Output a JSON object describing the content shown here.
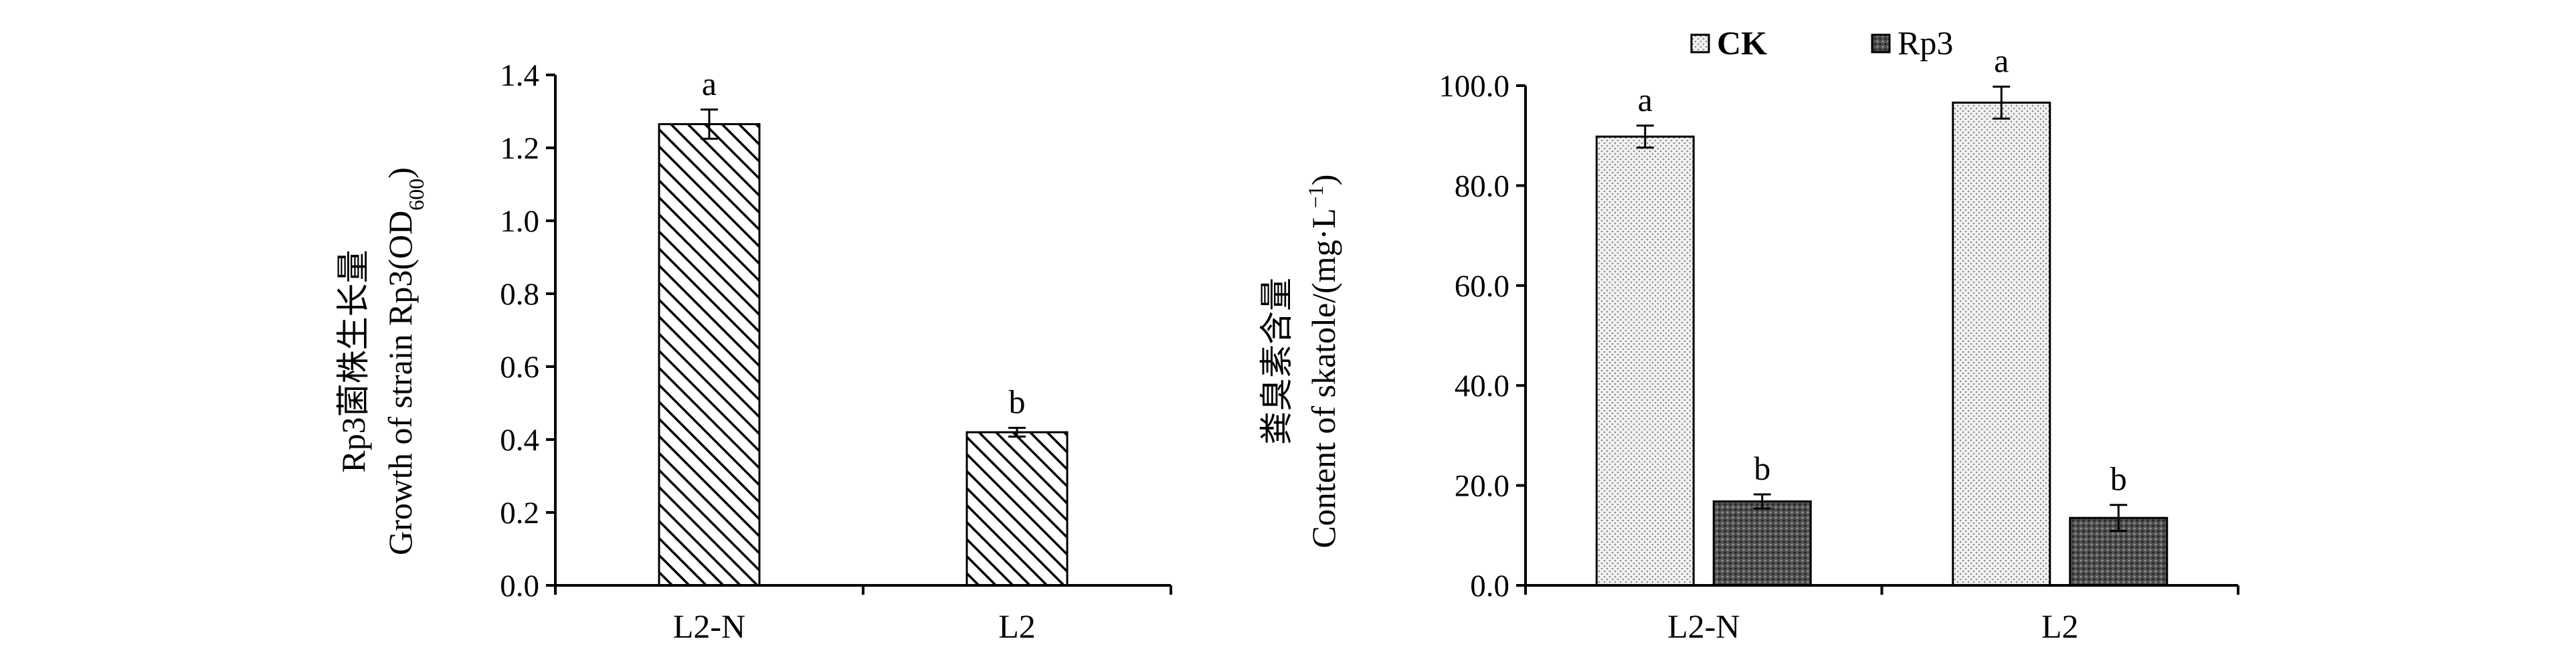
{
  "chart_data": [
    {
      "type": "bar",
      "categories": [
        "L2-N",
        "L2"
      ],
      "series": [
        {
          "values": [
            1.265,
            0.42
          ],
          "errors": [
            0.04,
            0.012
          ],
          "pattern": "diagonal-hatch"
        }
      ],
      "significance": [
        "a",
        "b"
      ],
      "ylabel_lines": [
        "Rp3菌株生长量",
        "Growth of strain Rp3(OD",
        "600",
        ")"
      ],
      "ylim": [
        0,
        1.4
      ],
      "yticks": [
        "0.0",
        "0.2",
        "0.4",
        "0.6",
        "0.8",
        "1.0",
        "1.2",
        "1.4"
      ],
      "ytick_values": [
        0,
        0.2,
        0.4,
        0.6,
        0.8,
        1.0,
        1.2,
        1.4
      ],
      "grid": false
    },
    {
      "type": "bar",
      "categories": [
        "L2-N",
        "L2"
      ],
      "series": [
        {
          "name": "CK",
          "values": [
            89.8,
            96.6
          ],
          "errors": [
            2.2,
            3.2
          ],
          "significance": [
            "a",
            "a"
          ],
          "pattern": "dots-light"
        },
        {
          "name": "Rp3",
          "values": [
            16.8,
            13.5
          ],
          "errors": [
            1.4,
            2.6
          ],
          "significance": [
            "b",
            "b"
          ],
          "pattern": "dots-dark"
        }
      ],
      "ylabel_lines": [
        "粪臭素含量",
        "Content of skatole/(mg·L",
        "−1",
        ")"
      ],
      "ylim": [
        0,
        100
      ],
      "yticks": [
        "0.0",
        "20.0",
        "40.0",
        "60.0",
        "80.0",
        "100.0"
      ],
      "ytick_values": [
        0,
        20,
        40,
        60,
        80,
        100
      ],
      "legend_position": "top",
      "grid": false
    }
  ]
}
